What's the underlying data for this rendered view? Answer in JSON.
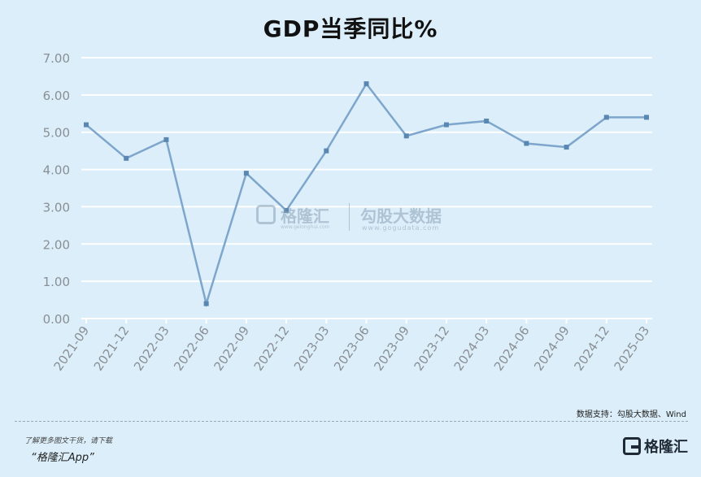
{
  "title": "GDP当季同比%",
  "source": "数据支持：勾股大数据、Wind",
  "promo": {
    "line1": "了解更多图文干货，请下载",
    "line2": "“格隆汇App”"
  },
  "logo": {
    "text": "格隆汇"
  },
  "watermark": {
    "brand_left": "格隆汇",
    "brand_right": "勾股大数据",
    "url_left": "www.gelonghui.com",
    "url_right": "www.gogudata.com"
  },
  "colors": {
    "background": "#dbeef9",
    "line": "#7ea6cc",
    "marker": "#5a86b2",
    "grid": "#ffffff",
    "tick_text": "#8a8f95"
  },
  "chart_data": {
    "type": "line",
    "title": "GDP当季同比%",
    "categories": [
      "2021-09",
      "2021-12",
      "2022-03",
      "2022-06",
      "2022-09",
      "2022-12",
      "2023-03",
      "2023-06",
      "2023-09",
      "2023-12",
      "2024-03",
      "2024-06",
      "2024-09",
      "2024-12",
      "2025-03"
    ],
    "series": [
      {
        "values": [
          5.2,
          4.3,
          4.8,
          0.4,
          3.9,
          2.9,
          4.5,
          6.3,
          4.9,
          5.2,
          5.3,
          4.7,
          4.6,
          5.4,
          5.4
        ]
      }
    ],
    "y_ticks": [
      "0.00",
      "1.00",
      "2.00",
      "3.00",
      "4.00",
      "5.00",
      "6.00",
      "7.00"
    ],
    "ylim": [
      0,
      7
    ],
    "grid": true,
    "legend": "none"
  }
}
